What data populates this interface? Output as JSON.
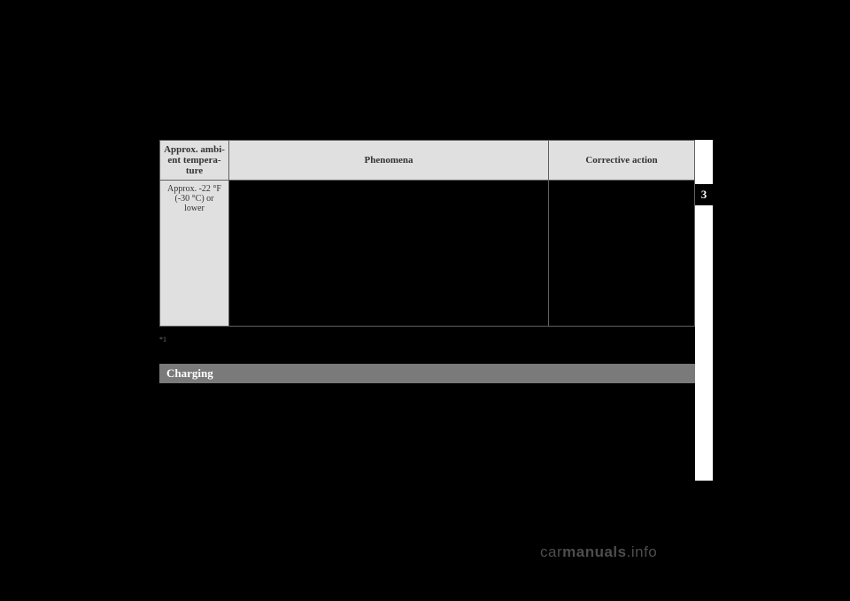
{
  "table": {
    "header": {
      "col1": "Approx. ambi-\nent tempera-\nture",
      "col2": "Phenomena",
      "col3": "Corrective action"
    },
    "row": {
      "temp": "Approx. -22 °F\n(-30 °C) or\nlower",
      "phenomena": "",
      "action": ""
    }
  },
  "footnote_marker": "*1",
  "section_title": "Charging",
  "tab_number": "3",
  "watermark_prefix": "car",
  "watermark_bold": "manuals",
  "watermark_suffix": ".info"
}
